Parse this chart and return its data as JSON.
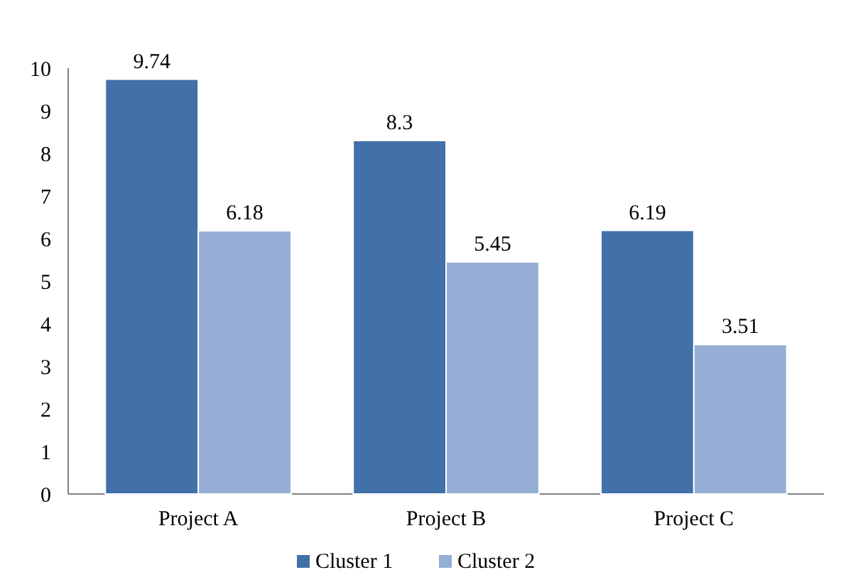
{
  "chart_data": {
    "type": "bar",
    "categories": [
      "Project A",
      "Project B",
      "Project C"
    ],
    "series": [
      {
        "name": "Cluster 1",
        "color": "#4270a8",
        "values": [
          9.74,
          8.3,
          6.19
        ]
      },
      {
        "name": "Cluster 2",
        "color": "#95aed6",
        "values": [
          6.18,
          5.45,
          3.51
        ]
      }
    ],
    "ylim": [
      0,
      10
    ],
    "yticks": [
      0,
      1,
      2,
      3,
      4,
      5,
      6,
      7,
      8,
      9,
      10
    ],
    "data_labels": true,
    "legend": "bottom",
    "grid": false
  }
}
